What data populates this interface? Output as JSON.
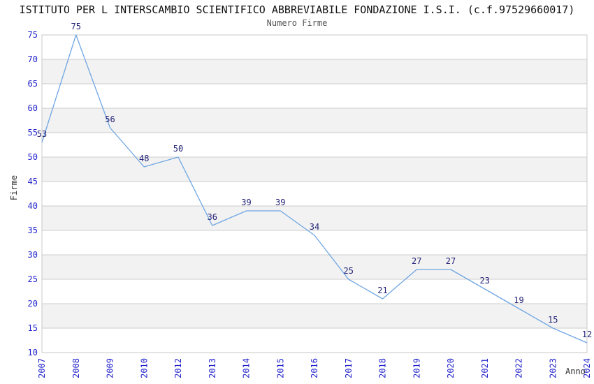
{
  "header": {
    "title": "ISTITUTO PER L INTERSCAMBIO SCIENTIFICO ABBREVIABILE FONDAZIONE I.S.I. (c.f.97529660017)"
  },
  "chart_data": {
    "type": "line",
    "title": "Numero Firme",
    "xlabel": "Anno",
    "ylabel": "Firme",
    "categories": [
      "2007",
      "2008",
      "2009",
      "2010",
      "2012",
      "2013",
      "2014",
      "2015",
      "2016",
      "2017",
      "2018",
      "2019",
      "2020",
      "2021",
      "2022",
      "2023",
      "2024"
    ],
    "values": [
      53,
      75,
      56,
      48,
      50,
      36,
      39,
      39,
      34,
      25,
      21,
      27,
      27,
      23,
      19,
      15,
      12
    ],
    "ylim": [
      10,
      75
    ],
    "ytick_step": 5,
    "grid": true,
    "alternating_bands": true,
    "data_labels": true,
    "legend": "none",
    "x_tick_rotation": -90
  },
  "colors": {
    "line": "#6FA6E3",
    "data_label": "#232378",
    "axis_tick": "#2222CC",
    "gridline": "#CCCCCC",
    "band": "#F2F2F2",
    "frame": "#C8C8C8",
    "title": "#111111",
    "subtitle": "#545454",
    "axis_title": "#333333",
    "background": "#FFFFFF"
  }
}
